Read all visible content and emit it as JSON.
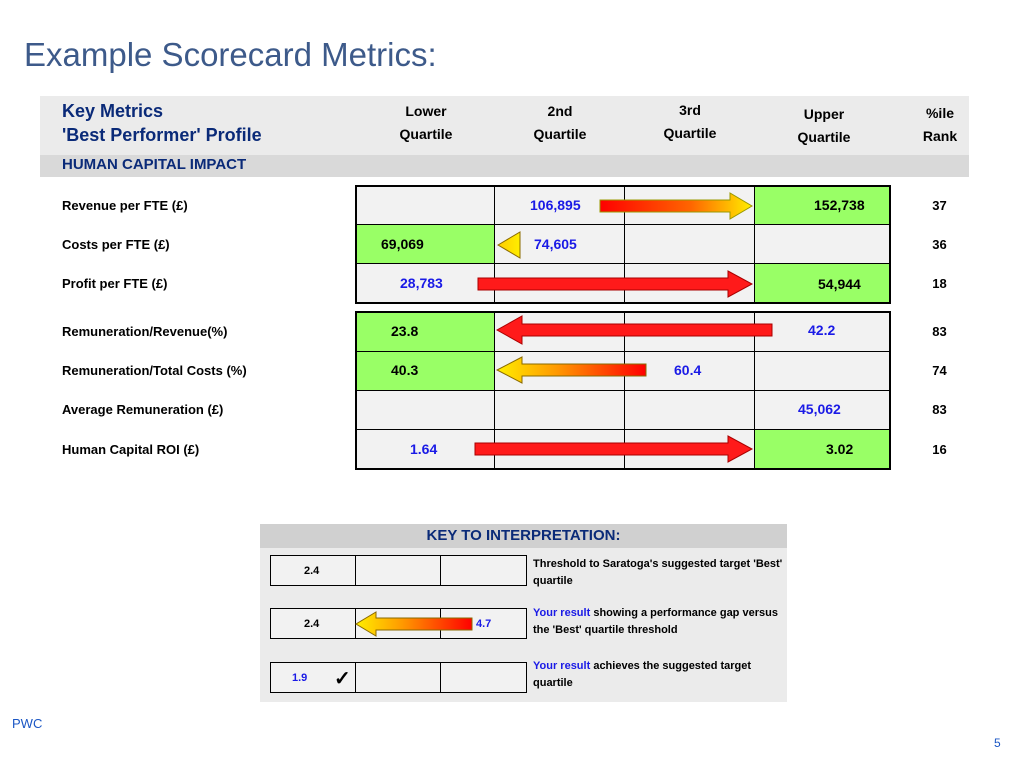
{
  "page": {
    "title": "Example Scorecard Metrics:",
    "footer": "PWC",
    "page_number": "5"
  },
  "header": {
    "line1": "Key Metrics",
    "line2": "'Best Performer' Profile",
    "col_lower": [
      "Lower",
      "Quartile"
    ],
    "col_2nd": [
      "2nd",
      "Quartile"
    ],
    "col_3rd": [
      "3rd",
      "Quartile"
    ],
    "col_upper": [
      "Upper",
      "Quartile"
    ],
    "col_rank": [
      "%ile",
      "Rank"
    ]
  },
  "section": "HUMAN CAPITAL IMPACT",
  "rows": [
    {
      "label": "Revenue per FTE (£)",
      "rank": "37",
      "values": [
        "106,895",
        "152,738"
      ]
    },
    {
      "label": "Costs per FTE (£)",
      "rank": "36",
      "values": [
        "69,069",
        "74,605"
      ]
    },
    {
      "label": "Profit per FTE (£)",
      "rank": "18",
      "values": [
        "28,783",
        "54,944"
      ]
    },
    {
      "label": "Remuneration/Revenue(%)",
      "rank": "83",
      "values": [
        "23.8",
        "42.2"
      ]
    },
    {
      "label": "Remuneration/Total Costs (%)",
      "rank": "74",
      "values": [
        "40.3",
        "60.4"
      ]
    },
    {
      "label": "Average Remuneration (£)",
      "rank": "83",
      "values": [
        "45,062"
      ]
    },
    {
      "label": "Human Capital ROI (£)",
      "rank": "16",
      "values": [
        "1.64",
        "3.02"
      ]
    }
  ],
  "key": {
    "title": "KEY TO INTERPRETATION:",
    "item1": {
      "value": "2.4",
      "text": "Threshold to Saratoga's suggested target 'Best' quartile"
    },
    "item2": {
      "value_a": "2.4",
      "value_b": "4.7",
      "blue_prefix": "Your result",
      "text": " showing a performance gap versus the 'Best' quartile threshold"
    },
    "item3": {
      "value": "1.9",
      "check": "✓",
      "blue_prefix": "Your result",
      "text": " achieves the suggested target quartile"
    }
  },
  "colors": {
    "title": "#3d5a8a",
    "navy": "#0a2a78",
    "blue_value": "#1a1ae6",
    "green_cell": "#99ff66",
    "arrow_red": "#ff0000",
    "arrow_orange": "#ff9900",
    "arrow_yellow": "#ffee00"
  }
}
